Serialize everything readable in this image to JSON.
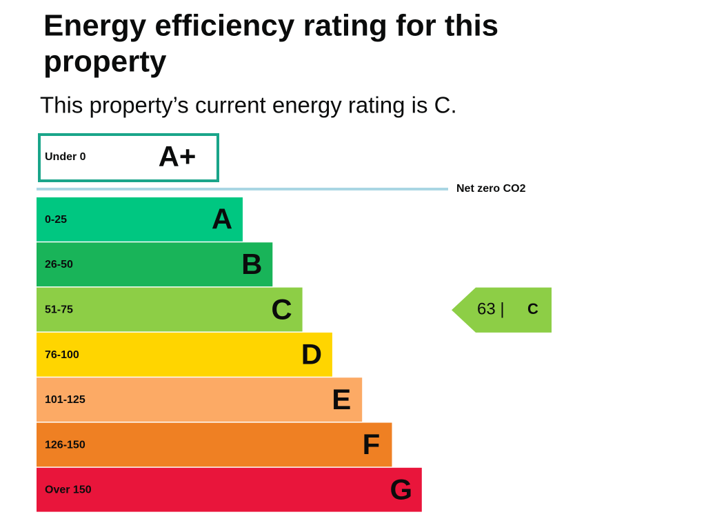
{
  "header": {
    "title_line1": "Energy efficiency rating for this",
    "title_line2": "property",
    "subtitle": "This property’s current energy rating is C."
  },
  "top_band": {
    "range": "Under 0",
    "letter": "A+",
    "color": "#1aa58a"
  },
  "net_zero": {
    "label": "Net zero CO2",
    "color": "#a9d6e3"
  },
  "bands": [
    {
      "range": "0-25",
      "letter": "A",
      "color": "#00c781"
    },
    {
      "range": "26-50",
      "letter": "B",
      "color": "#19b459"
    },
    {
      "range": "51-75",
      "letter": "C",
      "color": "#8dce46"
    },
    {
      "range": "76-100",
      "letter": "D",
      "color": "#ffd500"
    },
    {
      "range": "101-125",
      "letter": "E",
      "color": "#fcaa65"
    },
    {
      "range": "126-150",
      "letter": "F",
      "color": "#ef8023"
    },
    {
      "range": "Over 150",
      "letter": "G",
      "color": "#e9153b"
    }
  ],
  "current": {
    "label": "63 |",
    "letter": "C",
    "band_index": 2
  }
}
